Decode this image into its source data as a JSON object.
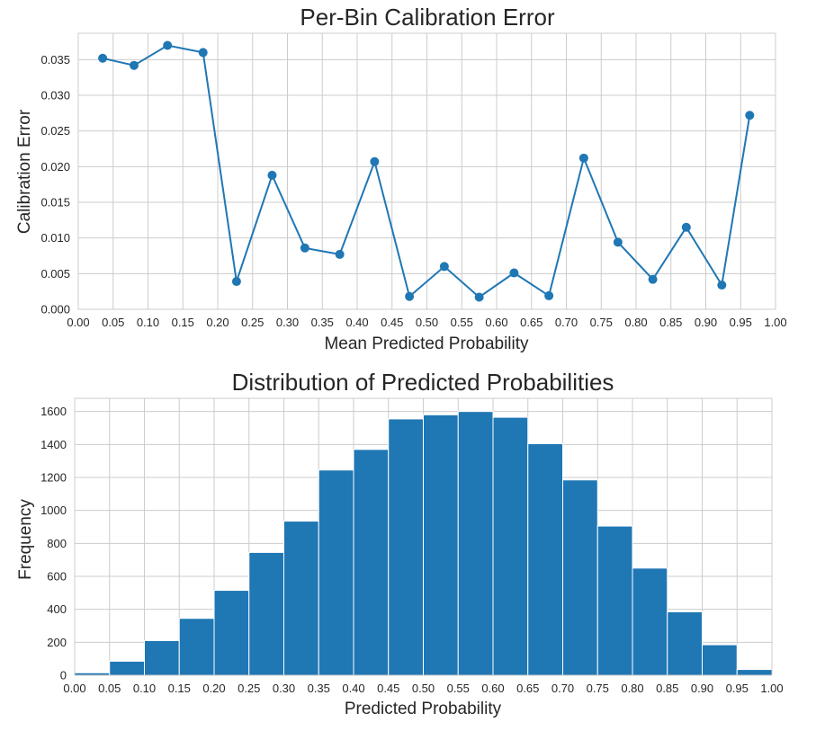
{
  "chart_data": [
    {
      "type": "line",
      "title": "Per-Bin Calibration Error",
      "xlabel": "Mean Predicted Probability",
      "ylabel": "Calibration Error",
      "xlim": [
        0.0,
        1.0
      ],
      "ylim": [
        0.0,
        0.0387
      ],
      "grid": true,
      "color": "#1f77b4",
      "x_ticks": [
        "0.00",
        "0.05",
        "0.10",
        "0.15",
        "0.20",
        "0.25",
        "0.30",
        "0.35",
        "0.40",
        "0.45",
        "0.50",
        "0.55",
        "0.60",
        "0.65",
        "0.70",
        "0.75",
        "0.80",
        "0.85",
        "0.90",
        "0.95",
        "1.00"
      ],
      "y_ticks": [
        "0.000",
        "0.005",
        "0.010",
        "0.015",
        "0.020",
        "0.025",
        "0.030",
        "0.035"
      ],
      "series": [
        {
          "x": [
            0.035,
            0.08,
            0.128,
            0.179,
            0.227,
            0.278,
            0.325,
            0.375,
            0.425,
            0.475,
            0.525,
            0.575,
            0.625,
            0.675,
            0.725,
            0.774,
            0.824,
            0.872,
            0.923,
            0.963
          ],
          "y": [
            0.0352,
            0.0342,
            0.037,
            0.036,
            0.0039,
            0.0188,
            0.0086,
            0.0077,
            0.0207,
            0.0018,
            0.006,
            0.0017,
            0.0051,
            0.0019,
            0.0212,
            0.0094,
            0.0042,
            0.0115,
            0.0034,
            0.0272
          ]
        }
      ]
    },
    {
      "type": "bar",
      "title": "Distribution of Predicted Probabilities",
      "xlabel": "Predicted Probability",
      "ylabel": "Frequency",
      "xlim": [
        0.0,
        1.0
      ],
      "ylim": [
        0,
        1680
      ],
      "grid": true,
      "color": "#1f77b4",
      "bin_width": 0.05,
      "x_ticks": [
        "0.00",
        "0.05",
        "0.10",
        "0.15",
        "0.20",
        "0.25",
        "0.30",
        "0.35",
        "0.40",
        "0.45",
        "0.50",
        "0.55",
        "0.60",
        "0.65",
        "0.70",
        "0.75",
        "0.80",
        "0.85",
        "0.90",
        "0.95",
        "1.00"
      ],
      "y_ticks": [
        "0",
        "200",
        "400",
        "600",
        "800",
        "1000",
        "1200",
        "1400",
        "1600"
      ],
      "bin_starts": [
        0.0,
        0.05,
        0.1,
        0.15,
        0.2,
        0.25,
        0.3,
        0.35,
        0.4,
        0.45,
        0.5,
        0.55,
        0.6,
        0.65,
        0.7,
        0.75,
        0.8,
        0.85,
        0.9,
        0.95
      ],
      "values": [
        15,
        85,
        210,
        345,
        515,
        745,
        935,
        1245,
        1370,
        1555,
        1580,
        1600,
        1565,
        1405,
        1185,
        905,
        650,
        385,
        185,
        35
      ]
    }
  ]
}
